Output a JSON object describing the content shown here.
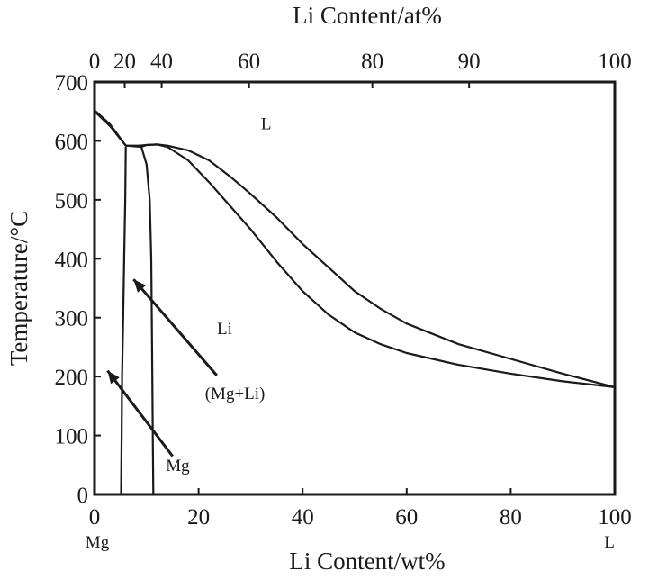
{
  "chart_data": {
    "type": "line",
    "xlabel": "Li Content/wt%",
    "ylabel": "Temperature/°C",
    "top_xlabel": "Li Content/at%",
    "xlim": [
      0,
      100
    ],
    "ylim": [
      0,
      700
    ],
    "x_ticks": [
      "0",
      "20",
      "40",
      "60",
      "80",
      "100"
    ],
    "x_tick_values": [
      0,
      20,
      40,
      60,
      80,
      100
    ],
    "y_ticks": [
      "0",
      "100",
      "200",
      "300",
      "400",
      "500",
      "600",
      "700"
    ],
    "y_tick_values": [
      0,
      100,
      200,
      300,
      400,
      500,
      600,
      700
    ],
    "top_ticks": [
      "0",
      "20",
      "40",
      "60",
      "80",
      "90",
      "100"
    ],
    "top_tick_positions_wt": [
      0,
      5.8,
      12.9,
      29.7,
      53.4,
      72.0,
      100
    ],
    "endpoint_labels": {
      "left": "Mg",
      "right": "L"
    },
    "grid": false,
    "series": [
      {
        "values": [
          [
            0,
            650
          ],
          [
            3,
            625
          ],
          [
            6,
            592
          ],
          [
            8.5,
            592
          ],
          [
            10,
            593
          ],
          [
            12,
            594
          ],
          [
            14,
            590
          ],
          [
            18,
            567
          ],
          [
            22,
            530
          ],
          [
            26,
            490
          ],
          [
            30,
            450
          ],
          [
            35,
            395
          ],
          [
            40,
            345
          ],
          [
            45,
            305
          ],
          [
            50,
            275
          ],
          [
            55,
            255
          ],
          [
            60,
            240
          ],
          [
            70,
            220
          ],
          [
            80,
            205
          ],
          [
            90,
            192
          ],
          [
            100,
            182
          ]
        ]
      },
      {
        "values": [
          [
            0,
            652
          ],
          [
            3,
            628
          ],
          [
            6,
            592
          ],
          [
            9,
            590
          ],
          [
            10,
            593
          ],
          [
            12,
            594
          ],
          [
            14,
            592
          ],
          [
            18,
            584
          ],
          [
            22,
            567
          ],
          [
            26,
            540
          ],
          [
            30,
            510
          ],
          [
            35,
            470
          ],
          [
            40,
            425
          ],
          [
            45,
            385
          ],
          [
            50,
            345
          ],
          [
            55,
            315
          ],
          [
            60,
            290
          ],
          [
            70,
            255
          ],
          [
            80,
            230
          ],
          [
            90,
            205
          ],
          [
            100,
            182
          ]
        ]
      },
      {
        "values": [
          [
            6,
            590
          ],
          [
            5.9,
            500
          ],
          [
            5.7,
            400
          ],
          [
            5.5,
            300
          ],
          [
            5.3,
            200
          ],
          [
            5.2,
            100
          ],
          [
            5.1,
            0
          ]
        ]
      },
      {
        "values": [
          [
            9,
            590
          ],
          [
            10,
            560
          ],
          [
            10.6,
            500
          ],
          [
            10.9,
            400
          ],
          [
            11.0,
            300
          ],
          [
            11.1,
            200
          ],
          [
            11.2,
            100
          ],
          [
            11.3,
            0
          ]
        ]
      }
    ],
    "annotations": [
      {
        "text": "L",
        "x": 33,
        "y": 620
      },
      {
        "text": "Li",
        "x": 25,
        "y": 272
      },
      {
        "text": "(Mg+Li)",
        "x": 27,
        "y": 162,
        "arrow_to": [
          7.5,
          365
        ],
        "arrow_from": [
          23.5,
          202
        ]
      },
      {
        "text": "Mg",
        "x": 16,
        "y": 40,
        "arrow_to": [
          2.5,
          210
        ],
        "arrow_from": [
          15,
          65
        ]
      }
    ]
  }
}
